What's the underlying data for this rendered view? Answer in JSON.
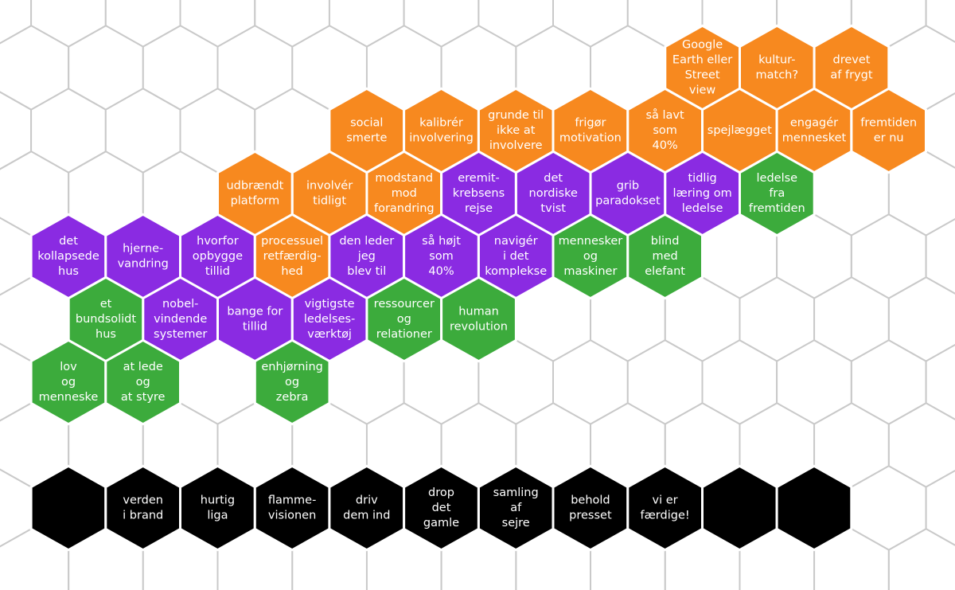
{
  "hexes": [
    {
      "color": "#f7891f",
      "lines": [
        "Google",
        "Earth eller",
        "Street",
        "view"
      ]
    },
    {
      "color": "#f7891f",
      "lines": [
        "kultur-",
        "match?"
      ]
    },
    {
      "color": "#f7891f",
      "lines": [
        "drevet",
        "af frygt"
      ]
    },
    {
      "color": "#f7891f",
      "lines": [
        "social",
        "smerte"
      ]
    },
    {
      "color": "#f7891f",
      "lines": [
        "kalibrér",
        "involvering"
      ]
    },
    {
      "color": "#f7891f",
      "lines": [
        "grunde til",
        "ikke at",
        "involvere"
      ]
    },
    {
      "color": "#f7891f",
      "lines": [
        "frigør",
        "motivation"
      ]
    },
    {
      "color": "#f7891f",
      "lines": [
        "så lavt",
        "som",
        "40%"
      ]
    },
    {
      "color": "#f7891f",
      "lines": [
        "spejlægget"
      ]
    },
    {
      "color": "#f7891f",
      "lines": [
        "engagér",
        "mennesket"
      ]
    },
    {
      "color": "#f7891f",
      "lines": [
        "fremtiden",
        "er nu"
      ]
    },
    {
      "color": "#f7891f",
      "lines": [
        "udbrændt",
        "platform"
      ]
    },
    {
      "color": "#f7891f",
      "lines": [
        "involvér",
        "tidligt"
      ]
    },
    {
      "color": "#f7891f",
      "lines": [
        "modstand",
        "mod",
        "forandring"
      ]
    },
    {
      "color": "#8a2be2",
      "lines": [
        "eremit-",
        "krebsens",
        "rejse"
      ]
    },
    {
      "color": "#8a2be2",
      "lines": [
        "det",
        "nordiske",
        "tvist"
      ]
    },
    {
      "color": "#8a2be2",
      "lines": [
        "grib",
        "paradokset"
      ]
    },
    {
      "color": "#8a2be2",
      "lines": [
        "tidlig",
        "læring om",
        "ledelse"
      ]
    },
    {
      "color": "#3cab3c",
      "lines": [
        "ledelse",
        "fra",
        "fremtiden"
      ]
    },
    {
      "color": "#8a2be2",
      "lines": [
        "det",
        "kollapsede",
        "hus"
      ]
    },
    {
      "color": "#8a2be2",
      "lines": [
        "hjerne-",
        "vandring"
      ]
    },
    {
      "color": "#8a2be2",
      "lines": [
        "hvorfor",
        "opbygge",
        "tillid"
      ]
    },
    {
      "color": "#f7891f",
      "lines": [
        "processuel",
        "retfærdig-",
        "hed"
      ]
    },
    {
      "color": "#8a2be2",
      "lines": [
        "den leder",
        "jeg",
        "blev til"
      ]
    },
    {
      "color": "#8a2be2",
      "lines": [
        "så højt",
        "som",
        "40%"
      ]
    },
    {
      "color": "#8a2be2",
      "lines": [
        "navigér",
        "i det",
        "komplekse"
      ]
    },
    {
      "color": "#3cab3c",
      "lines": [
        "mennesker",
        "og",
        "maskiner"
      ]
    },
    {
      "color": "#3cab3c",
      "lines": [
        "blind",
        "med",
        "elefant"
      ]
    },
    {
      "color": "#3cab3c",
      "lines": [
        "et",
        "bundsolidt",
        "hus"
      ]
    },
    {
      "color": "#8a2be2",
      "lines": [
        "nobel-",
        "vindende",
        "systemer"
      ]
    },
    {
      "color": "#8a2be2",
      "lines": [
        "bange for",
        "tillid"
      ]
    },
    {
      "color": "#8a2be2",
      "lines": [
        "vigtigste",
        "ledelses-",
        "værktøj"
      ]
    },
    {
      "color": "#3cab3c",
      "lines": [
        "ressourcer",
        "og",
        "relationer"
      ]
    },
    {
      "color": "#3cab3c",
      "lines": [
        "human",
        "revolution"
      ]
    },
    {
      "color": "#3cab3c",
      "lines": [
        "lov",
        "og",
        "menneske"
      ]
    },
    {
      "color": "#3cab3c",
      "lines": [
        "at lede",
        "og",
        "at styre"
      ]
    },
    {
      "color": "#3cab3c",
      "lines": [
        "enhjørning",
        "og",
        "zebra"
      ]
    },
    {
      "color": "#000000"
    },
    {
      "color": "#000000",
      "lines": [
        "verden",
        "i brand"
      ]
    },
    {
      "color": "#000000",
      "lines": [
        "hurtig",
        "liga"
      ]
    },
    {
      "color": "#000000",
      "lines": [
        "flamme-",
        "visionen"
      ]
    },
    {
      "color": "#000000",
      "lines": [
        "driv",
        "dem ind"
      ]
    },
    {
      "color": "#000000",
      "lines": [
        "drop",
        "det",
        "gamle"
      ]
    },
    {
      "color": "#000000",
      "lines": [
        "samling",
        "af",
        "sejre"
      ]
    },
    {
      "color": "#000000",
      "lines": [
        "behold",
        "presset"
      ]
    },
    {
      "color": "#000000",
      "lines": [
        "vi er",
        "færdige!"
      ]
    },
    {
      "color": "#000000"
    },
    {
      "color": "#000000"
    }
  ]
}
